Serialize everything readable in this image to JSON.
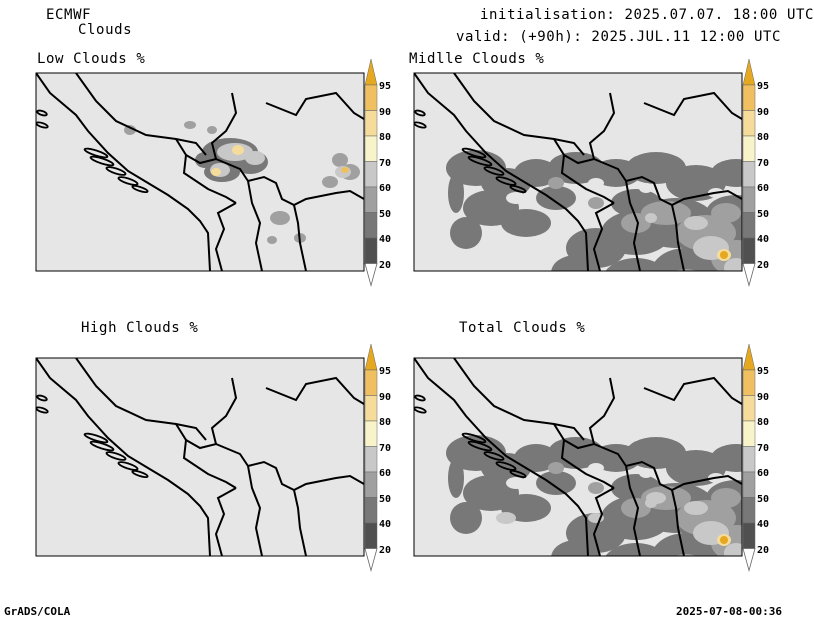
{
  "header": {
    "model": "ECMWF",
    "product": "Clouds",
    "init_line": "initialisation: 2025.07.07. 18:00 UTC",
    "valid_line": "valid: (+90h): 2025.JUL.11 12:00 UTC"
  },
  "panels": [
    {
      "id": "low",
      "title": "Low Clouds %"
    },
    {
      "id": "middle",
      "title": "Midlle Clouds %"
    },
    {
      "id": "high",
      "title": "High Clouds %"
    },
    {
      "id": "total",
      "title": "Total Clouds %"
    }
  ],
  "colorbar": {
    "levels": [
      "95",
      "90",
      "80",
      "70",
      "60",
      "50",
      "40",
      "20"
    ],
    "colors": [
      "#e6a820",
      "#f0c060",
      "#f5dc9a",
      "#f8f3c8",
      "#c8c8c8",
      "#a0a0a0",
      "#787878",
      "#505050",
      "#e6e6e6"
    ]
  },
  "footer": {
    "left": "GrADS/COLA",
    "right": "2025-07-08-00:36"
  }
}
